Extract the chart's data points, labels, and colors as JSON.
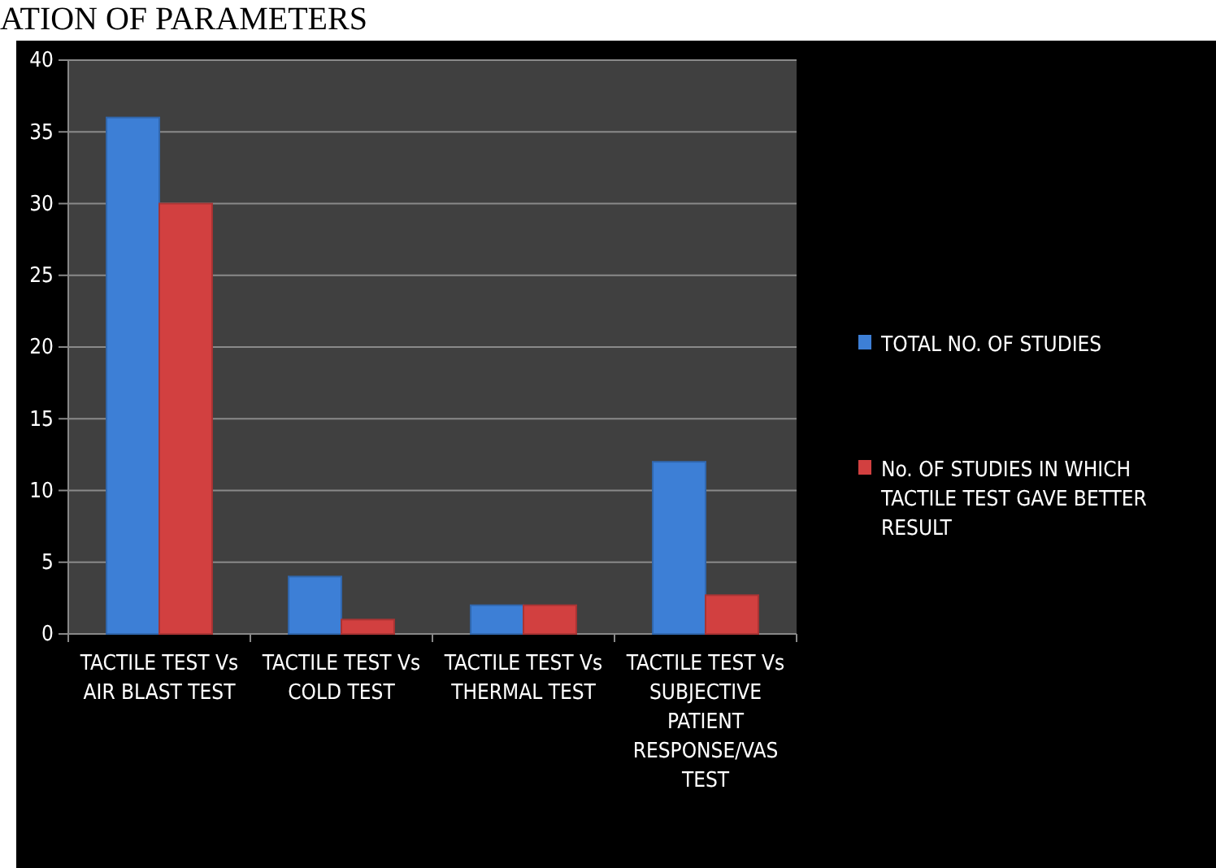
{
  "chart_data": {
    "type": "bar",
    "title": "ATION OF PARAMETERS",
    "categories": [
      "TACTILE TEST Vs AIR BLAST TEST",
      "TACTILE TEST Vs COLD TEST",
      "TACTILE TEST Vs THERMAL TEST",
      "TACTILE TEST Vs SUBJECTIVE PATIENT RESPONSE/VAS TEST"
    ],
    "series": [
      {
        "name": "TOTAL NO. OF STUDIES",
        "color": "#3d7fd6",
        "values": [
          36,
          4,
          2,
          12
        ]
      },
      {
        "name": "No. OF STUDIES IN WHICH TACTILE TEST GAVE BETTER RESULT",
        "color": "#d24040",
        "values": [
          30,
          1,
          2,
          2.7
        ]
      }
    ],
    "ylim": [
      0,
      40
    ],
    "yticks": [
      0,
      5,
      10,
      15,
      20,
      25,
      30,
      35,
      40
    ],
    "grid": "y",
    "legend": "right"
  }
}
